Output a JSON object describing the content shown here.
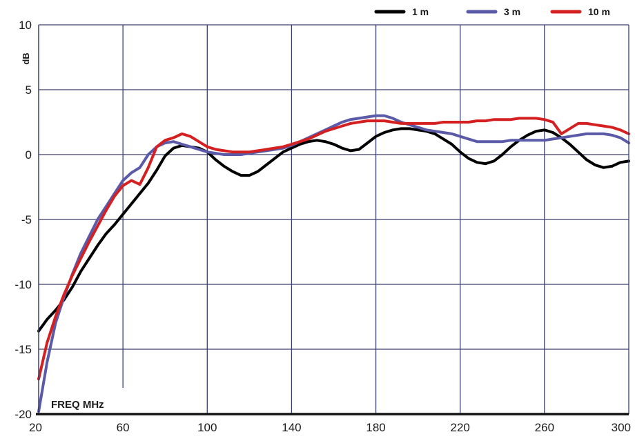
{
  "chart_data": {
    "type": "line",
    "xlabel": "FREQ MHz",
    "ylabel": "dB",
    "xlim": [
      20,
      300
    ],
    "ylim": [
      -20,
      10
    ],
    "xticks": [
      20,
      60,
      100,
      140,
      180,
      220,
      260,
      300
    ],
    "yticks": [
      10,
      5,
      0,
      -5,
      -10,
      -15,
      -20
    ],
    "grid": true,
    "legend_position": "top-right",
    "series": [
      {
        "name": "1 m",
        "color": "#000000",
        "x": [
          20,
          24,
          28,
          32,
          36,
          40,
          44,
          48,
          52,
          56,
          60,
          64,
          68,
          72,
          76,
          80,
          84,
          88,
          92,
          96,
          100,
          104,
          108,
          112,
          116,
          120,
          124,
          128,
          132,
          136,
          140,
          144,
          148,
          152,
          156,
          160,
          164,
          168,
          172,
          176,
          180,
          184,
          188,
          192,
          196,
          200,
          204,
          208,
          212,
          216,
          220,
          224,
          228,
          232,
          236,
          240,
          244,
          248,
          252,
          256,
          260,
          264,
          268,
          272,
          276,
          280,
          284,
          288,
          292,
          296,
          300
        ],
        "values": [
          -13.6,
          -12.7,
          -12.0,
          -11.2,
          -10.2,
          -9.0,
          -8.0,
          -7.0,
          -6.1,
          -5.4,
          -4.6,
          -3.8,
          -3.0,
          -2.2,
          -1.2,
          -0.1,
          0.5,
          0.7,
          0.6,
          0.5,
          0.2,
          -0.4,
          -0.9,
          -1.3,
          -1.6,
          -1.6,
          -1.3,
          -0.8,
          -0.3,
          0.2,
          0.5,
          0.8,
          1.0,
          1.1,
          1.0,
          0.8,
          0.5,
          0.3,
          0.4,
          0.9,
          1.4,
          1.7,
          1.9,
          2.0,
          2.0,
          1.9,
          1.8,
          1.6,
          1.2,
          0.8,
          0.2,
          -0.3,
          -0.6,
          -0.7,
          -0.5,
          0.0,
          0.6,
          1.1,
          1.5,
          1.8,
          1.9,
          1.7,
          1.3,
          0.8,
          0.2,
          -0.4,
          -0.8,
          -1.0,
          -0.9,
          -0.6,
          -0.5
        ]
      },
      {
        "name": "3 m",
        "color": "#5a5aa8",
        "x": [
          20,
          24,
          28,
          32,
          36,
          40,
          44,
          48,
          52,
          56,
          60,
          64,
          68,
          72,
          76,
          80,
          84,
          88,
          92,
          96,
          100,
          104,
          108,
          112,
          116,
          120,
          124,
          128,
          132,
          136,
          140,
          144,
          148,
          152,
          156,
          160,
          164,
          168,
          172,
          176,
          180,
          184,
          188,
          192,
          196,
          200,
          204,
          208,
          212,
          216,
          220,
          224,
          228,
          232,
          236,
          240,
          244,
          248,
          252,
          256,
          260,
          264,
          268,
          272,
          276,
          280,
          284,
          288,
          292,
          296,
          300
        ],
        "values": [
          -19.8,
          -16.0,
          -13.0,
          -11.0,
          -9.2,
          -7.6,
          -6.3,
          -5.0,
          -4.0,
          -3.0,
          -2.0,
          -1.4,
          -1.0,
          0.0,
          0.6,
          0.9,
          1.0,
          0.8,
          0.6,
          0.4,
          0.2,
          0.1,
          0.0,
          0.0,
          0.0,
          0.1,
          0.2,
          0.3,
          0.4,
          0.5,
          0.7,
          1.0,
          1.3,
          1.6,
          1.9,
          2.2,
          2.5,
          2.7,
          2.8,
          2.9,
          3.0,
          3.0,
          2.8,
          2.5,
          2.3,
          2.1,
          1.9,
          1.8,
          1.7,
          1.6,
          1.4,
          1.2,
          1.0,
          1.0,
          1.0,
          1.0,
          1.1,
          1.1,
          1.1,
          1.1,
          1.1,
          1.2,
          1.3,
          1.4,
          1.5,
          1.6,
          1.6,
          1.6,
          1.5,
          1.3,
          0.9
        ]
      },
      {
        "name": "10 m",
        "color": "#d42020",
        "x": [
          20,
          24,
          28,
          32,
          36,
          40,
          44,
          48,
          52,
          56,
          60,
          64,
          68,
          72,
          76,
          80,
          84,
          88,
          92,
          96,
          100,
          104,
          108,
          112,
          116,
          120,
          124,
          128,
          132,
          136,
          140,
          144,
          148,
          152,
          156,
          160,
          164,
          168,
          172,
          176,
          180,
          184,
          188,
          192,
          196,
          200,
          204,
          208,
          212,
          216,
          220,
          224,
          228,
          232,
          236,
          240,
          244,
          248,
          252,
          256,
          260,
          264,
          268,
          272,
          276,
          280,
          284,
          288,
          292,
          296,
          300
        ],
        "values": [
          -17.3,
          -14.5,
          -12.5,
          -10.8,
          -9.3,
          -8.0,
          -6.7,
          -5.5,
          -4.3,
          -3.2,
          -2.4,
          -2.0,
          -2.3,
          -1.0,
          0.6,
          1.1,
          1.3,
          1.6,
          1.4,
          1.0,
          0.6,
          0.4,
          0.3,
          0.2,
          0.2,
          0.2,
          0.3,
          0.4,
          0.5,
          0.6,
          0.8,
          1.0,
          1.2,
          1.5,
          1.8,
          2.0,
          2.2,
          2.4,
          2.5,
          2.6,
          2.6,
          2.6,
          2.5,
          2.4,
          2.4,
          2.4,
          2.4,
          2.4,
          2.5,
          2.5,
          2.5,
          2.5,
          2.6,
          2.6,
          2.7,
          2.7,
          2.7,
          2.8,
          2.8,
          2.8,
          2.7,
          2.5,
          1.6,
          2.0,
          2.4,
          2.4,
          2.3,
          2.2,
          2.1,
          1.9,
          1.6
        ]
      }
    ]
  }
}
